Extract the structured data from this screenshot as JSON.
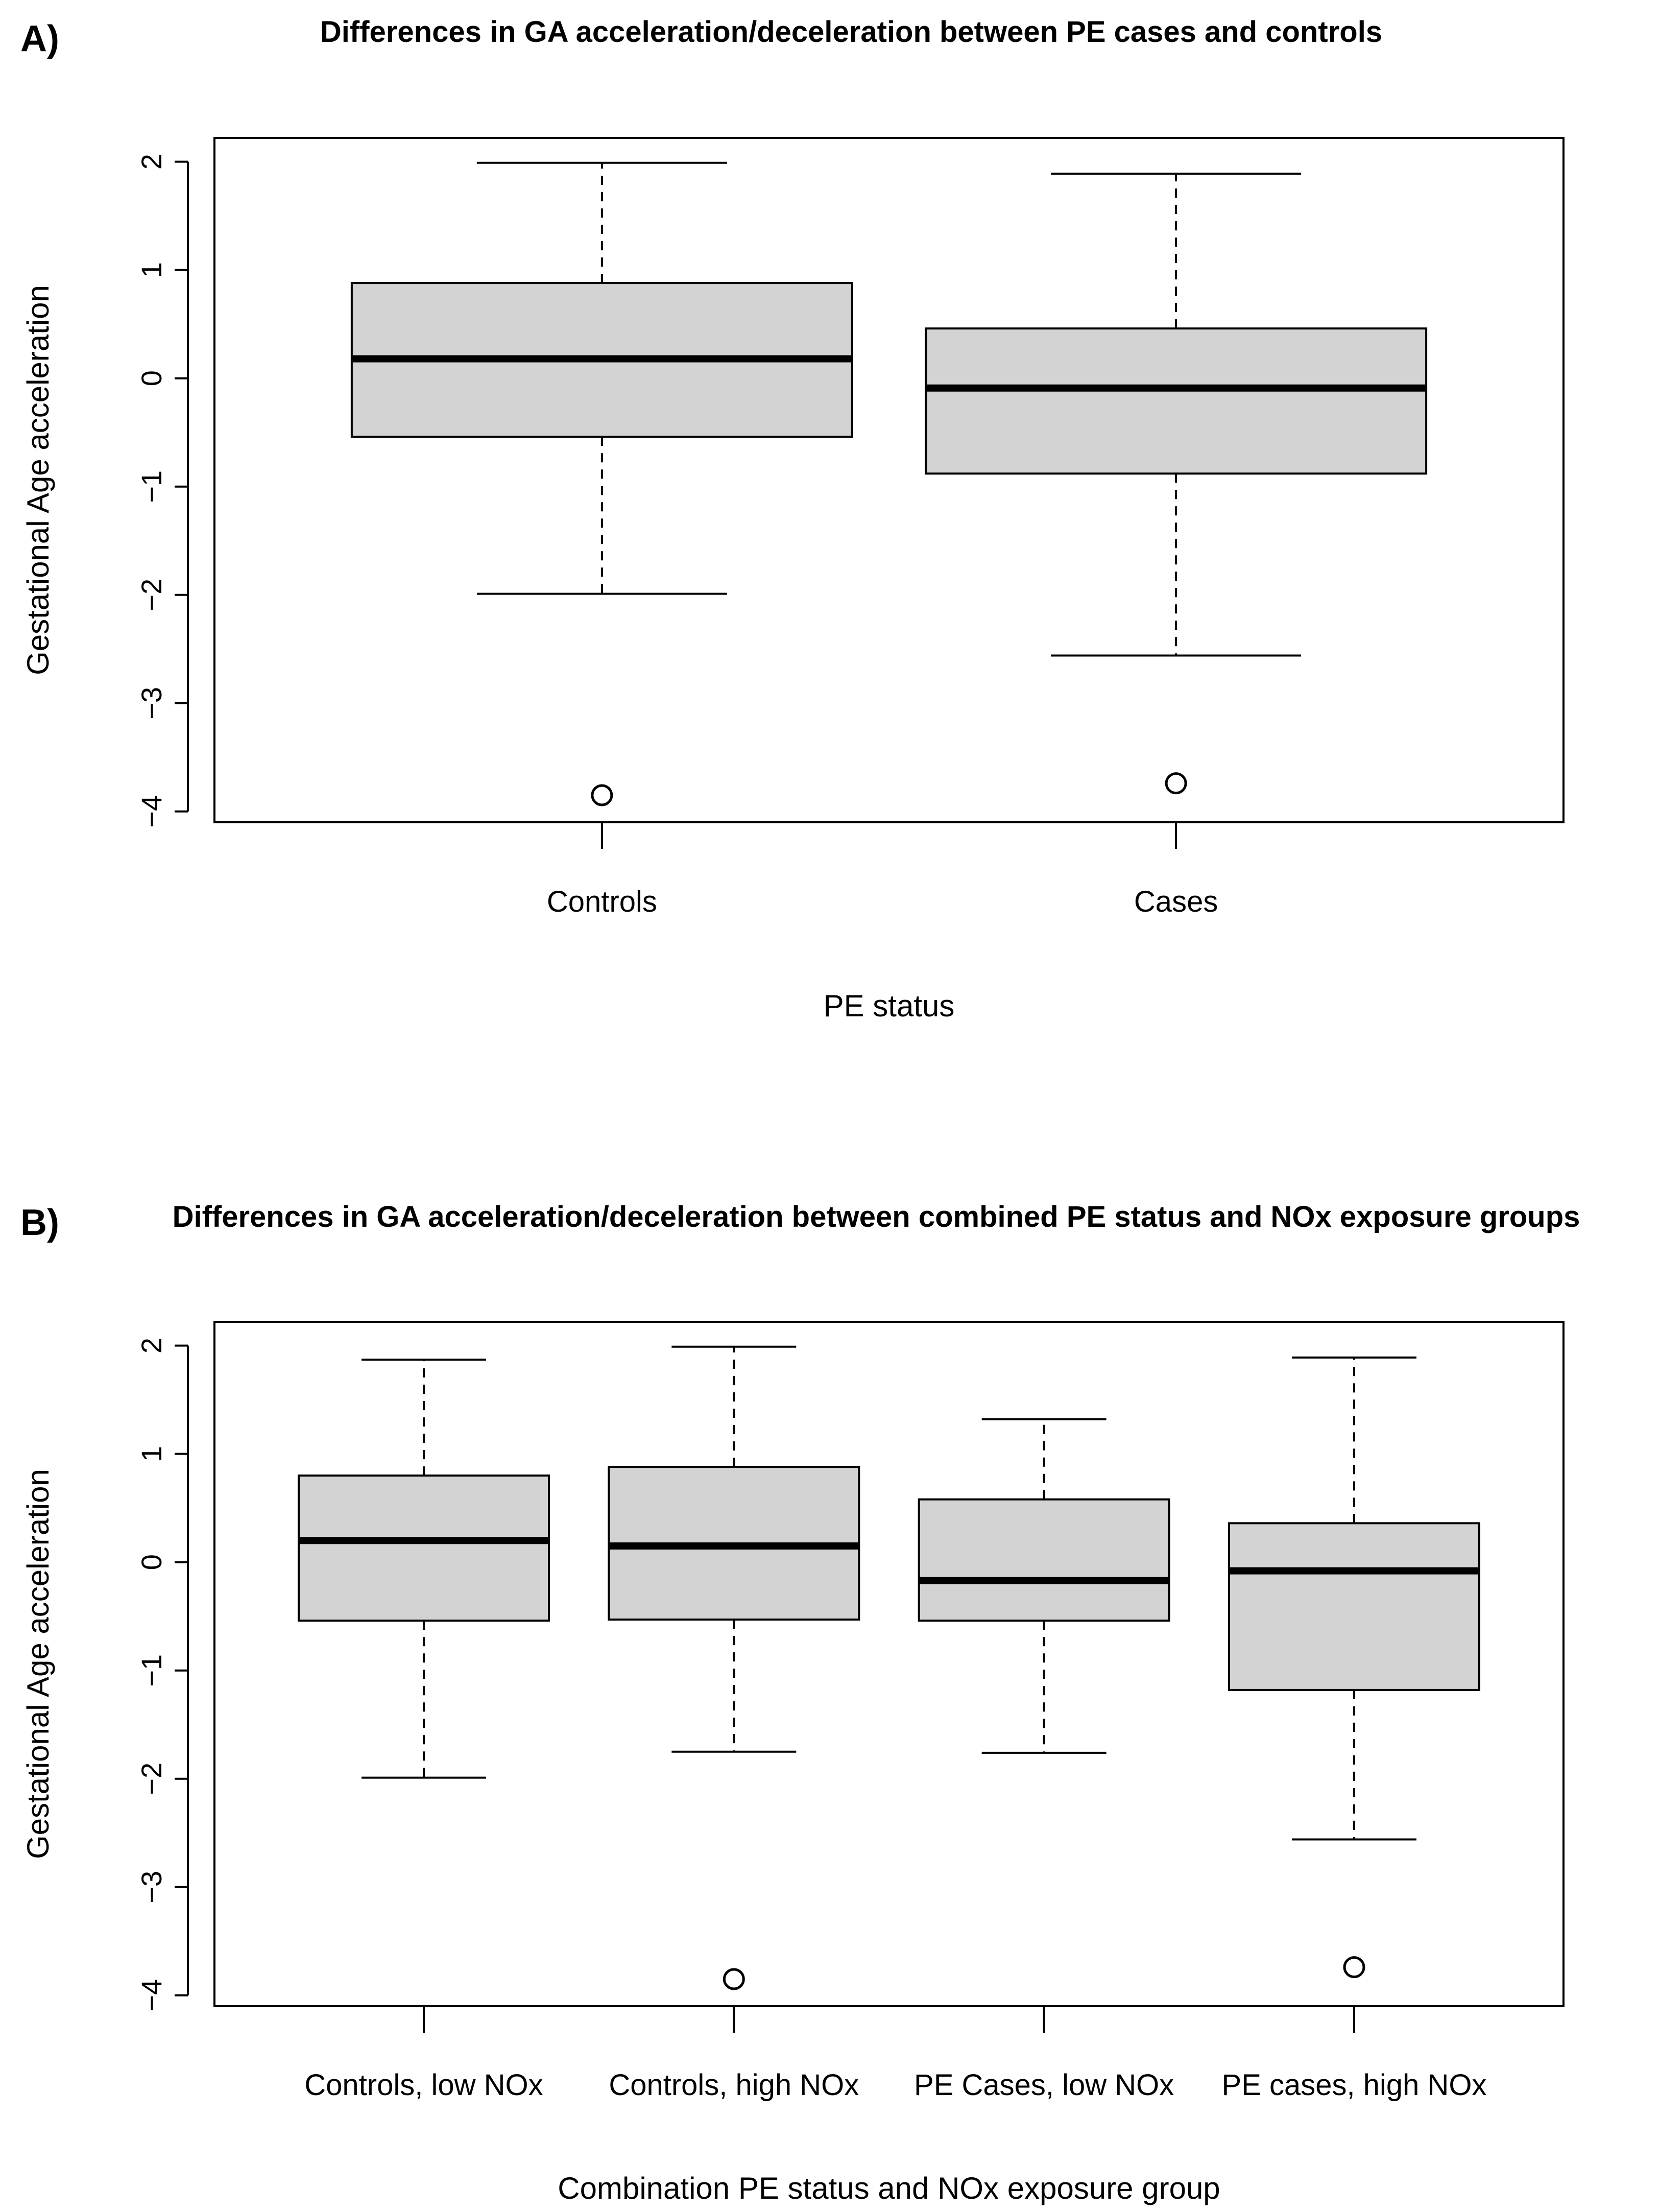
{
  "chart_data": [
    {
      "panel": "A)",
      "type": "boxplot",
      "title": "Differences in GA acceleration/deceleration between PE cases and controls",
      "xlabel": "PE status",
      "ylabel": "Gestational Age acceleration",
      "ylim": [
        -4.1,
        2.22
      ],
      "yticks": [
        -4,
        -3,
        -2,
        -1,
        0,
        1,
        2
      ],
      "ytick_labels": [
        "−4",
        "−3",
        "−2",
        "−1",
        "0",
        "1",
        "2"
      ],
      "categories": [
        "Controls",
        "Cases"
      ],
      "boxes": [
        {
          "whisker_low": -1.99,
          "q1": -0.54,
          "median": 0.18,
          "q3": 0.88,
          "whisker_high": 1.99,
          "outliers": [
            -3.85
          ]
        },
        {
          "whisker_low": -2.56,
          "q1": -0.88,
          "median": -0.09,
          "q3": 0.46,
          "whisker_high": 1.89,
          "outliers": [
            -3.74
          ]
        }
      ],
      "box_fill": "#d3d3d3"
    },
    {
      "panel": "B)",
      "type": "boxplot",
      "title": "Differences in GA acceleration/deceleration between combined PE status and NOx exposure groups",
      "xlabel": "Combination PE status and NOx exposure group",
      "ylabel": "Gestational Age acceleration",
      "ylim": [
        -4.1,
        2.22
      ],
      "yticks": [
        -4,
        -3,
        -2,
        -1,
        0,
        1,
        2
      ],
      "ytick_labels": [
        "−4",
        "−3",
        "−2",
        "−1",
        "0",
        "1",
        "2"
      ],
      "categories": [
        "Controls, low NOx",
        "Controls, high NOx",
        "PE Cases, low NOx",
        "PE cases, high NOx"
      ],
      "boxes": [
        {
          "whisker_low": -1.99,
          "q1": -0.54,
          "median": 0.2,
          "q3": 0.8,
          "whisker_high": 1.87,
          "outliers": []
        },
        {
          "whisker_low": -1.75,
          "q1": -0.53,
          "median": 0.15,
          "q3": 0.88,
          "whisker_high": 1.99,
          "outliers": [
            -3.85
          ]
        },
        {
          "whisker_low": -1.76,
          "q1": -0.54,
          "median": -0.17,
          "q3": 0.58,
          "whisker_high": 1.32,
          "outliers": []
        },
        {
          "whisker_low": -2.56,
          "q1": -1.18,
          "median": -0.08,
          "q3": 0.36,
          "whisker_high": 1.89,
          "outliers": [
            -3.74
          ]
        }
      ],
      "box_fill": "#d3d3d3"
    }
  ]
}
